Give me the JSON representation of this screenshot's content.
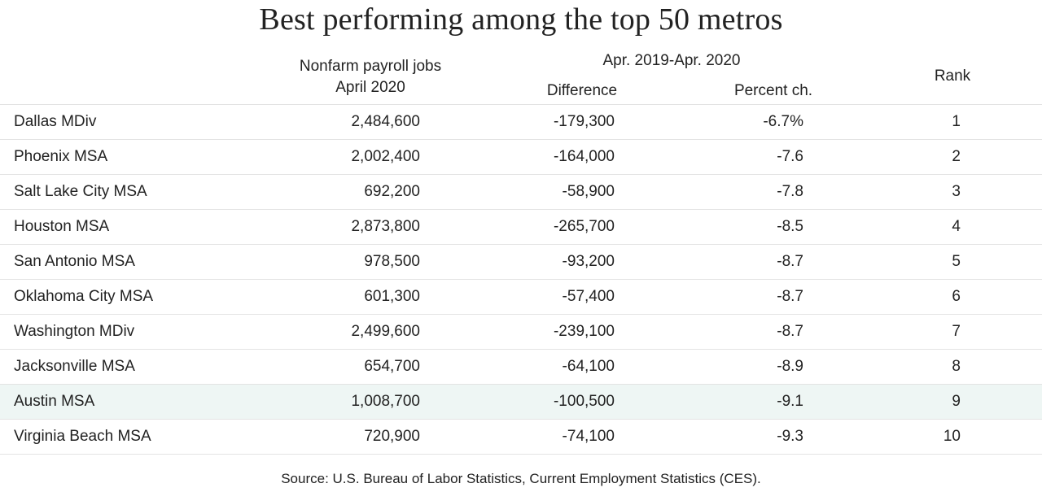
{
  "chart_data": {
    "type": "table",
    "title": "Best performing among the top 50 metros",
    "headers": {
      "jobs_line1": "Nonfarm  payroll jobs",
      "jobs_line2": "April 2020",
      "period": "Apr. 2019-Apr. 2020",
      "difference": "Difference",
      "percent": "Percent ch.",
      "rank": "Rank"
    },
    "rows": [
      {
        "name": "Dallas MDiv",
        "jobs": "2,484,600",
        "difference": "-179,300",
        "percent": "-6.7%",
        "rank": "1"
      },
      {
        "name": "Phoenix MSA",
        "jobs": "2,002,400",
        "difference": "-164,000",
        "percent": "-7.6",
        "rank": "2"
      },
      {
        "name": "Salt Lake City MSA",
        "jobs": "692,200",
        "difference": "-58,900",
        "percent": "-7.8",
        "rank": "3"
      },
      {
        "name": "Houston MSA",
        "jobs": "2,873,800",
        "difference": "-265,700",
        "percent": "-8.5",
        "rank": "4"
      },
      {
        "name": "San Antonio MSA",
        "jobs": "978,500",
        "difference": "-93,200",
        "percent": "-8.7",
        "rank": "5"
      },
      {
        "name": "Oklahoma  City MSA",
        "jobs": "601,300",
        "difference": "-57,400",
        "percent": "-8.7",
        "rank": "6"
      },
      {
        "name": "Washington MDiv",
        "jobs": "2,499,600",
        "difference": "-239,100",
        "percent": "-8.7",
        "rank": "7"
      },
      {
        "name": "Jacksonville MSA",
        "jobs": "654,700",
        "difference": "-64,100",
        "percent": "-8.9",
        "rank": "8"
      },
      {
        "name": "Austin MSA",
        "jobs": "1,008,700",
        "difference": "-100,500",
        "percent": "-9.1",
        "rank": "9"
      },
      {
        "name": "Virginia Beach MSA",
        "jobs": "720,900",
        "difference": "-74,100",
        "percent": "-9.3",
        "rank": "10"
      }
    ],
    "highlighted_row": "Austin MSA",
    "highlight_color": "#eef6f4",
    "source": "Source:  U.S. Bureau of Labor Statistics, Current Employment Statistics (CES)."
  }
}
